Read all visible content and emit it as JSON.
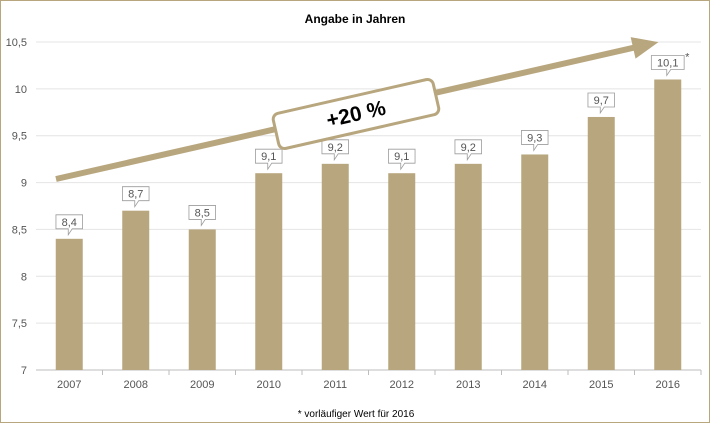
{
  "chart_data": {
    "type": "bar",
    "title": "Angabe in Jahren",
    "categories": [
      "2007",
      "2008",
      "2009",
      "2010",
      "2011",
      "2012",
      "2013",
      "2014",
      "2015",
      "2016"
    ],
    "values": [
      8.4,
      8.7,
      8.5,
      9.1,
      9.2,
      9.1,
      9.2,
      9.3,
      9.7,
      10.1
    ],
    "data_labels": [
      "8,4",
      "8,7",
      "8,5",
      "9,1",
      "9,2",
      "9,1",
      "9,2",
      "9,3",
      "9,7",
      "10,1"
    ],
    "last_label_marker": "*",
    "ylim": [
      7,
      10.5
    ],
    "yticks": [
      7,
      7.5,
      8,
      8.5,
      9,
      9.5,
      10,
      10.5
    ],
    "ytick_labels": [
      "7",
      "7,5",
      "8",
      "8,5",
      "9",
      "9,5",
      "10",
      "10,5"
    ],
    "grid": true,
    "annotation": "+20 %",
    "footnote": "* vorläufiger Wert für 2016",
    "colors": {
      "bar": "#b8a77e",
      "arrow": "#b8a77e",
      "grid": "#e4e4e4",
      "axis": "#bdbdbd"
    }
  }
}
